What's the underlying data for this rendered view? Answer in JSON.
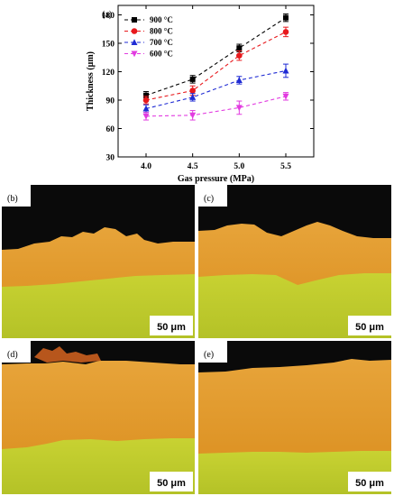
{
  "chart_data": {
    "type": "line",
    "panel_label": "(a)",
    "xlabel": "Gas pressure (MPa)",
    "ylabel": "Thickness (μm)",
    "x": [
      4.0,
      4.5,
      5.0,
      5.5
    ],
    "x_tick_labels": [
      "4.0",
      "4.5",
      "5.0",
      "5.5"
    ],
    "xlim": [
      3.7,
      5.8
    ],
    "ylim": [
      30,
      190
    ],
    "y_ticks": [
      30,
      60,
      90,
      120,
      150,
      180
    ],
    "grid": false,
    "legend_position": "top-left",
    "series": [
      {
        "name": "900 °C",
        "color": "#000000",
        "marker": "square",
        "values": [
          95,
          112,
          145,
          177
        ],
        "errors": [
          4,
          4,
          4,
          4
        ]
      },
      {
        "name": "800 °C",
        "color": "#e8191d",
        "marker": "circle",
        "values": [
          90,
          100,
          137,
          162
        ],
        "errors": [
          4,
          5,
          5,
          5
        ]
      },
      {
        "name": "700 °C",
        "color": "#1f2bd4",
        "marker": "triangle-up",
        "values": [
          81,
          93,
          111,
          121
        ],
        "errors": [
          4,
          4,
          4,
          7
        ]
      },
      {
        "name": "600 °C",
        "color": "#e23be0",
        "marker": "triangle-down",
        "values": [
          73,
          74,
          82,
          94
        ],
        "errors": [
          4,
          5,
          7,
          4
        ]
      }
    ]
  },
  "micrographs": [
    {
      "label": "(b)",
      "scale_bar": "50 μm"
    },
    {
      "label": "(c)",
      "scale_bar": "50 μm"
    },
    {
      "label": "(d)",
      "scale_bar": "50 μm"
    },
    {
      "label": "(e)",
      "scale_bar": "50 μm"
    }
  ],
  "colors": {
    "background_dark": "#0a0a0a",
    "coating_orange": "#e29a2a",
    "substrate_green": "#c4cf2e"
  }
}
